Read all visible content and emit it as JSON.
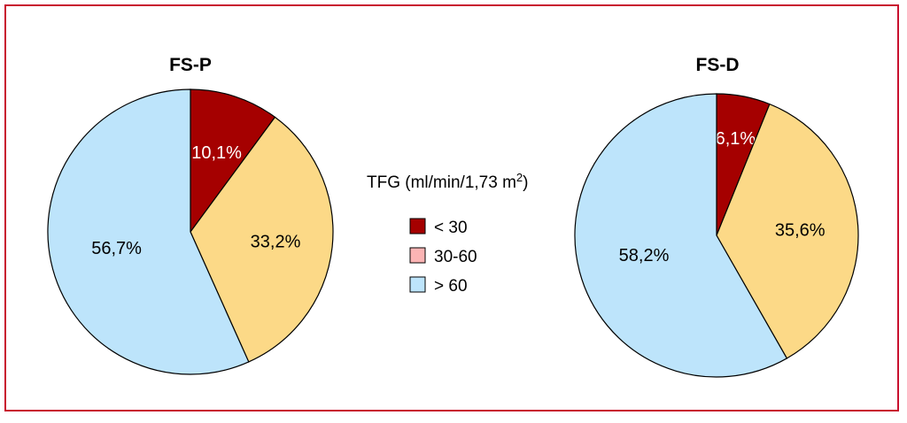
{
  "legend": {
    "title": "TFG (ml/min/1,73 m",
    "title_sup": "2",
    "title_close": ")",
    "items": [
      {
        "label": "< 30",
        "color": "#a50000"
      },
      {
        "label": "30-60",
        "color": "#fbb4b4"
      },
      {
        "label": "> 60",
        "color": "#bde4fb"
      }
    ]
  },
  "chart_data": [
    {
      "type": "pie",
      "title": "FS-P",
      "slices": [
        {
          "category": "< 30",
          "value": 10.1,
          "label": "10,1%",
          "color": "#a50000",
          "label_color": "#ffffff"
        },
        {
          "category": "30-60 (slice color as shown)",
          "value": 33.2,
          "label": "33,2%",
          "color": "#fcd987",
          "label_color": "#000000"
        },
        {
          "category": "> 60",
          "value": 56.7,
          "label": "56,7%",
          "color": "#bde4fb",
          "label_color": "#000000"
        }
      ]
    },
    {
      "type": "pie",
      "title": "FS-D",
      "slices": [
        {
          "category": "< 30",
          "value": 6.1,
          "label": "6,1%",
          "color": "#a50000",
          "label_color": "#ffffff"
        },
        {
          "category": "30-60 (slice color as shown)",
          "value": 35.6,
          "label": "35,6%",
          "color": "#fcd987",
          "label_color": "#000000"
        },
        {
          "category": "> 60",
          "value": 58.2,
          "label": "58,2%",
          "color": "#bde4fb",
          "label_color": "#000000"
        }
      ]
    }
  ]
}
